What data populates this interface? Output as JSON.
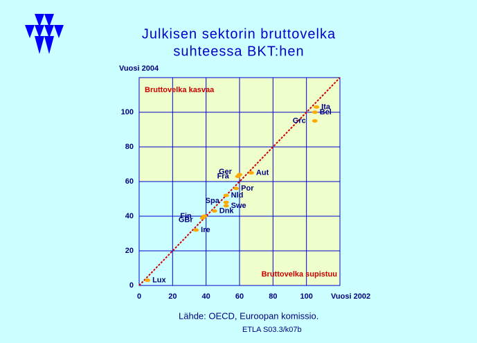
{
  "chart_data": {
    "type": "scatter",
    "title": [
      "Julkisen  sektorin  bruttovelka",
      "suhteessa  BKT:hen"
    ],
    "y_label": "Vuosi 2004",
    "x_label": "Vuosi 2002",
    "annotations": [
      "Bruttovelka kasvaa",
      "Bruttovelka supistuu"
    ],
    "source": [
      "Lähde:   OECD, Euroopan komissio.",
      "ETLA S03.3/k07b"
    ],
    "categories": [
      "Lux",
      "Ire",
      "Fin",
      "GBr",
      "Dnk",
      "Spa",
      "Swe",
      "Nld",
      "Por",
      "Fra",
      "Ger",
      "Aut",
      "Grc",
      "Bel",
      "Ita"
    ],
    "x": [
      5,
      34,
      39,
      38,
      45,
      52,
      52,
      52,
      58,
      59,
      60,
      67,
      105,
      105,
      106
    ],
    "values": [
      3,
      32,
      40,
      39,
      43,
      48,
      46,
      52,
      56,
      63,
      64,
      65,
      95,
      100,
      103
    ],
    "color": "#ffaa00",
    "xlim": [
      0,
      120
    ],
    "ylim": [
      0,
      120
    ],
    "xticks": [
      0,
      20,
      40,
      60,
      80,
      100
    ],
    "yticks": [
      0,
      20,
      40,
      60,
      80,
      100
    ],
    "grid": true
  }
}
